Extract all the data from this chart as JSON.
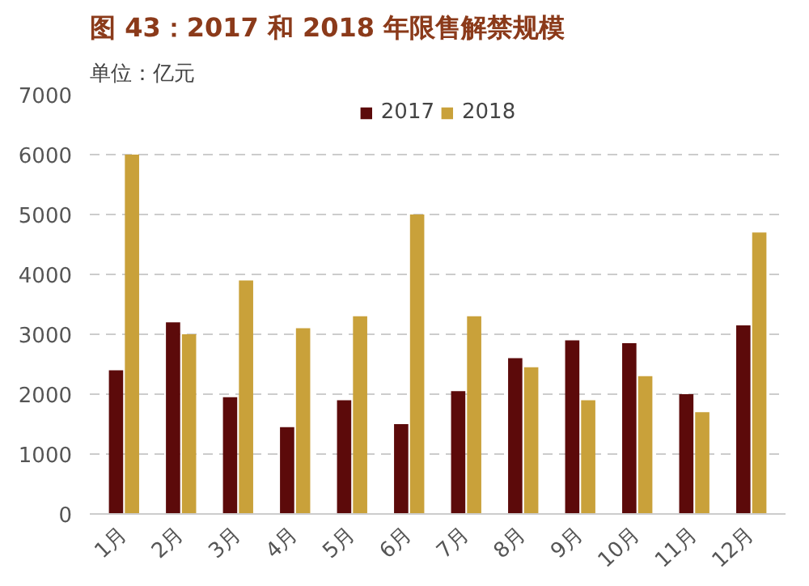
{
  "chart_data": {
    "type": "bar",
    "title": "图 43：2017 和 2018 年限售解禁规模",
    "ylabel": "单位：亿元",
    "categories": [
      "1月",
      "2月",
      "3月",
      "4月",
      "5月",
      "6月",
      "7月",
      "8月",
      "9月",
      "10月",
      "11月",
      "12月"
    ],
    "series": [
      {
        "name": "2017",
        "color": "#5c0a0a",
        "values": [
          2400,
          3200,
          1950,
          1450,
          1900,
          1500,
          2050,
          2600,
          2900,
          2850,
          2000,
          3150
        ]
      },
      {
        "name": "2018",
        "color": "#c9a13a",
        "values": [
          6000,
          3000,
          3900,
          3100,
          3300,
          5000,
          3300,
          2450,
          1900,
          2300,
          1700,
          4700
        ]
      }
    ],
    "ylim": [
      0,
      7000
    ],
    "yticks": [
      0,
      1000,
      2000,
      3000,
      4000,
      5000,
      6000,
      7000
    ],
    "grid": "y",
    "legend": "top"
  }
}
